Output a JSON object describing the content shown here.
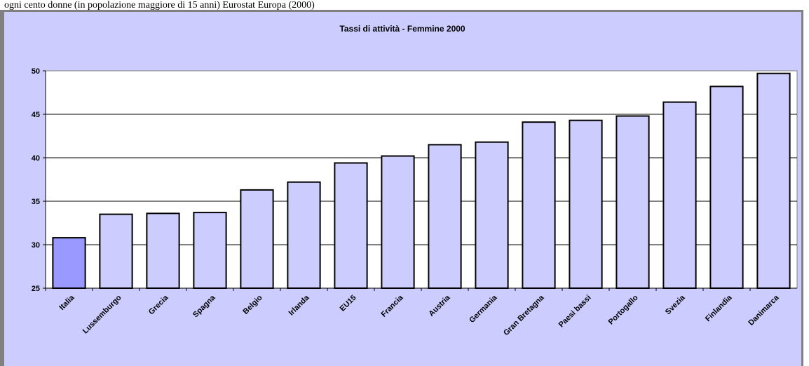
{
  "caption": "ogni cento donne (in popolazione maggiore di 15 anni) Eurostat Europa (2000)",
  "chart_data": {
    "type": "bar",
    "title": "Tassi di attività - Femmine 2000",
    "xlabel": "",
    "ylabel": "",
    "categories": [
      "Italia",
      "Lussemburgo",
      "Grecia",
      "Spagna",
      "Belgio",
      "Irlanda",
      "EU15",
      "Francia",
      "Austria",
      "Germania",
      "Gran Bretagna",
      "Paesi bassi",
      "Portogallo",
      "Svezia",
      "Finlandia",
      "Danimarca"
    ],
    "series": [
      {
        "values": [
          30.8,
          33.5,
          33.6,
          33.7,
          36.3,
          37.2,
          39.4,
          40.2,
          41.5,
          41.8,
          44.1,
          44.3,
          44.8,
          46.4,
          48.2,
          49.7
        ]
      }
    ],
    "ylim": [
      25,
      50
    ],
    "yticks": [
      25,
      30,
      35,
      40,
      45,
      50
    ],
    "grid": true,
    "legend": "none",
    "colors": {
      "bar": "#ccccff",
      "highlight_bar": "#9999ff",
      "plot_background": "#ffffff",
      "chart_background": "#ccccff",
      "bar_border": "#000000"
    },
    "highlight_index": 0
  }
}
